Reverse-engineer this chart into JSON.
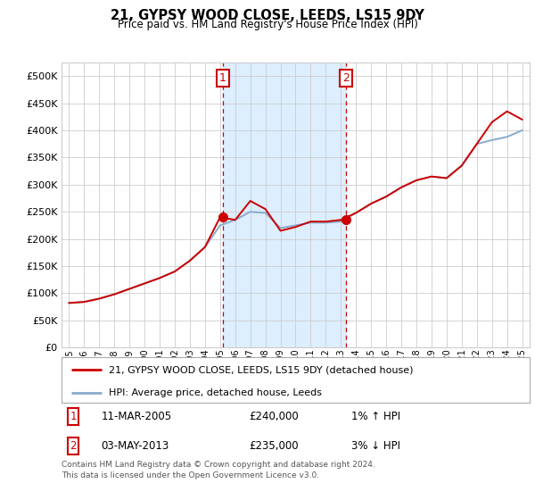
{
  "title": "21, GYPSY WOOD CLOSE, LEEDS, LS15 9DY",
  "subtitle": "Price paid vs. HM Land Registry's House Price Index (HPI)",
  "ylabel_ticks": [
    "£0",
    "£50K",
    "£100K",
    "£150K",
    "£200K",
    "£250K",
    "£300K",
    "£350K",
    "£400K",
    "£450K",
    "£500K"
  ],
  "ytick_values": [
    0,
    50000,
    100000,
    150000,
    200000,
    250000,
    300000,
    350000,
    400000,
    450000,
    500000
  ],
  "ylim": [
    0,
    525000
  ],
  "xlim_start": 1994.5,
  "xlim_end": 2025.5,
  "xtick_years": [
    1995,
    1996,
    1997,
    1998,
    1999,
    2000,
    2001,
    2002,
    2003,
    2004,
    2005,
    2006,
    2007,
    2008,
    2009,
    2010,
    2011,
    2012,
    2013,
    2014,
    2015,
    2016,
    2017,
    2018,
    2019,
    2020,
    2021,
    2022,
    2023,
    2024,
    2025
  ],
  "sale1_x": 2005.19,
  "sale1_y": 240000,
  "sale2_x": 2013.34,
  "sale2_y": 235000,
  "marker1_label": "1",
  "marker2_label": "2",
  "sale1_date": "11-MAR-2005",
  "sale1_price": "£240,000",
  "sale1_hpi": "1% ↑ HPI",
  "sale2_date": "03-MAY-2013",
  "sale2_price": "£235,000",
  "sale2_hpi": "3% ↓ HPI",
  "legend_label1": "21, GYPSY WOOD CLOSE, LEEDS, LS15 9DY (detached house)",
  "legend_label2": "HPI: Average price, detached house, Leeds",
  "footnote1": "Contains HM Land Registry data © Crown copyright and database right 2024.",
  "footnote2": "This data is licensed under the Open Government Licence v3.0.",
  "line_color_red": "#cc0000",
  "line_color_blue": "#88aacc",
  "shaded_color": "#ddeeff",
  "background_color": "#ffffff",
  "grid_color": "#cccccc",
  "marker_box_color": "#cc0000",
  "dashed_line_color": "#cc0000",
  "hpi_data_x": [
    1995,
    1996,
    1997,
    1998,
    1999,
    2000,
    2001,
    2002,
    2003,
    2004,
    2005,
    2006,
    2007,
    2008,
    2009,
    2010,
    2011,
    2012,
    2013,
    2014,
    2015,
    2016,
    2017,
    2018,
    2019,
    2020,
    2021,
    2022,
    2023,
    2024,
    2025
  ],
  "hpi_data_y": [
    82000,
    84000,
    90000,
    98000,
    108000,
    118000,
    128000,
    140000,
    160000,
    185000,
    225000,
    235000,
    250000,
    248000,
    220000,
    225000,
    230000,
    230000,
    232000,
    248000,
    265000,
    278000,
    295000,
    308000,
    315000,
    312000,
    335000,
    375000,
    382000,
    388000,
    400000
  ],
  "price_data_x": [
    1995,
    1996,
    1997,
    1998,
    1999,
    2000,
    2001,
    2002,
    2003,
    2004,
    2005,
    2006,
    2007,
    2008,
    2009,
    2010,
    2011,
    2012,
    2013,
    2014,
    2015,
    2016,
    2017,
    2018,
    2019,
    2020,
    2021,
    2022,
    2023,
    2024,
    2025
  ],
  "price_data_y": [
    82000,
    84000,
    90000,
    98000,
    108000,
    118000,
    128000,
    140000,
    160000,
    185000,
    240000,
    235000,
    270000,
    255000,
    215000,
    222000,
    232000,
    232000,
    235000,
    248000,
    265000,
    278000,
    295000,
    308000,
    315000,
    312000,
    335000,
    375000,
    415000,
    435000,
    420000
  ]
}
